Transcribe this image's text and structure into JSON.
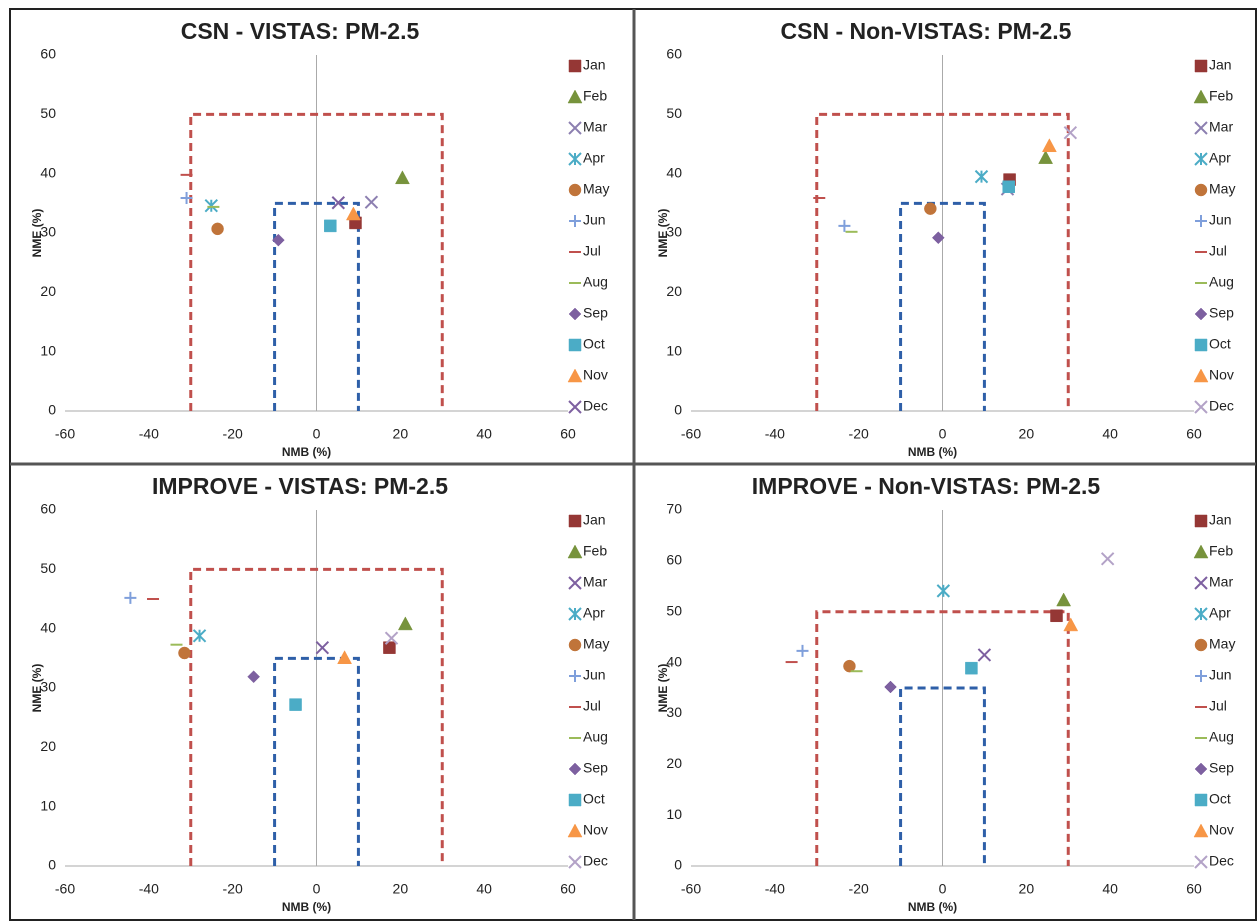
{
  "chart_data": [
    {
      "type": "scatter",
      "title": "CSN - VISTAS: PM-2.5",
      "xlabel": "NMB (%)",
      "ylabel": "NME (%)",
      "xlim": [
        -60,
        60
      ],
      "xticks": [
        -60,
        -40,
        -20,
        0,
        20,
        40,
        60
      ],
      "ylim": [
        0,
        60
      ],
      "yticks": [
        0,
        10,
        20,
        30,
        40,
        50,
        60
      ],
      "boxes": [
        {
          "xlim": [
            -30,
            30
          ],
          "top": 50,
          "color": "#c0504d"
        },
        {
          "xlim": [
            -10,
            10
          ],
          "top": 35,
          "color": "#2e5fa8"
        }
      ],
      "series": [
        {
          "name": "Jan",
          "color": "#953735",
          "marker": "square",
          "x": [
            9.3
          ],
          "values": [
            31.7
          ]
        },
        {
          "name": "Feb",
          "color": "#77933c",
          "marker": "triangle",
          "x": [
            20.5
          ],
          "values": [
            39.3
          ]
        },
        {
          "name": "Mar",
          "color": "#8c7fb0",
          "marker": "x",
          "x": [
            13.1
          ],
          "values": [
            35.2
          ]
        },
        {
          "name": "Apr",
          "color": "#4bacc6",
          "marker": "asterisk",
          "x": [
            -25.1
          ],
          "values": [
            34.6
          ]
        },
        {
          "name": "May",
          "color": "#c0743a",
          "marker": "circle",
          "x": [
            -23.6
          ],
          "values": [
            30.7
          ]
        },
        {
          "name": "Jun",
          "color": "#7f9fdb",
          "marker": "plus",
          "x": [
            -31
          ],
          "values": [
            35.9
          ]
        },
        {
          "name": "Jul",
          "color": "#c0504d",
          "marker": "dash",
          "x": [
            -31
          ],
          "values": [
            39.8
          ]
        },
        {
          "name": "Aug",
          "color": "#9bbb59",
          "marker": "dash",
          "x": [
            -24.6
          ],
          "values": [
            34.4
          ]
        },
        {
          "name": "Sep",
          "color": "#7d60a0",
          "marker": "diamond",
          "x": [
            -9.1
          ],
          "values": [
            28.8
          ]
        },
        {
          "name": "Oct",
          "color": "#4bacc6",
          "marker": "square",
          "x": [
            3.3
          ],
          "values": [
            31.2
          ]
        },
        {
          "name": "Nov",
          "color": "#f79646",
          "marker": "triangle",
          "x": [
            8.8
          ],
          "values": [
            33.2
          ]
        },
        {
          "name": "Dec",
          "color": "#7d60a0",
          "marker": "x",
          "x": [
            5.2
          ],
          "values": [
            35.1
          ]
        }
      ]
    },
    {
      "type": "scatter",
      "title": "CSN - Non-VISTAS: PM-2.5",
      "xlabel": "NMB (%)",
      "ylabel": "NME (%)",
      "xlim": [
        -60,
        60
      ],
      "xticks": [
        -60,
        -40,
        -20,
        0,
        20,
        40,
        60
      ],
      "ylim": [
        0,
        60
      ],
      "yticks": [
        0,
        10,
        20,
        30,
        40,
        50,
        60
      ],
      "boxes": [
        {
          "xlim": [
            -30,
            30
          ],
          "top": 50,
          "color": "#c0504d"
        },
        {
          "xlim": [
            -10,
            10
          ],
          "top": 35,
          "color": "#2e5fa8"
        }
      ],
      "series": [
        {
          "name": "Jan",
          "color": "#953735",
          "marker": "square",
          "x": [
            16.0
          ],
          "values": [
            39.0
          ]
        },
        {
          "name": "Feb",
          "color": "#77933c",
          "marker": "triangle",
          "x": [
            24.6
          ],
          "values": [
            42.7
          ]
        },
        {
          "name": "Mar",
          "color": "#8c7fb0",
          "marker": "x",
          "x": [
            15.5
          ],
          "values": [
            37.4
          ]
        },
        {
          "name": "Apr",
          "color": "#4bacc6",
          "marker": "asterisk",
          "x": [
            9.3
          ],
          "values": [
            39.5
          ]
        },
        {
          "name": "May",
          "color": "#c0743a",
          "marker": "circle",
          "x": [
            -2.9
          ],
          "values": [
            34.1
          ]
        },
        {
          "name": "Jun",
          "color": "#7f9fdb",
          "marker": "plus",
          "x": [
            -23.4
          ],
          "values": [
            31.2
          ]
        },
        {
          "name": "Jul",
          "color": "#c0504d",
          "marker": "dash",
          "x": [
            -29.4
          ],
          "values": [
            35.9
          ]
        },
        {
          "name": "Aug",
          "color": "#9bbb59",
          "marker": "dash",
          "x": [
            -21.7
          ],
          "values": [
            30.2
          ]
        },
        {
          "name": "Sep",
          "color": "#7d60a0",
          "marker": "diamond",
          "x": [
            -1
          ],
          "values": [
            29.2
          ]
        },
        {
          "name": "Oct",
          "color": "#4bacc6",
          "marker": "square",
          "x": [
            15.8
          ],
          "values": [
            37.8
          ]
        },
        {
          "name": "Nov",
          "color": "#f79646",
          "marker": "triangle",
          "x": [
            25.5
          ],
          "values": [
            44.7
          ]
        },
        {
          "name": "Dec",
          "color": "#b3a2c7",
          "marker": "x",
          "x": [
            30.5
          ],
          "values": [
            46.9
          ]
        }
      ]
    },
    {
      "type": "scatter",
      "title": "IMPROVE - VISTAS: PM-2.5",
      "xlabel": "NMB (%)",
      "ylabel": "NME (%)",
      "xlim": [
        -60,
        60
      ],
      "xticks": [
        -60,
        -40,
        -20,
        0,
        20,
        40,
        60
      ],
      "ylim": [
        0,
        60
      ],
      "yticks": [
        0,
        10,
        20,
        30,
        40,
        50,
        60
      ],
      "boxes": [
        {
          "xlim": [
            -30,
            30
          ],
          "top": 50,
          "color": "#c0504d"
        },
        {
          "xlim": [
            -10,
            10
          ],
          "top": 35,
          "color": "#2e5fa8"
        }
      ],
      "series": [
        {
          "name": "Jan",
          "color": "#953735",
          "marker": "square",
          "x": [
            17.4
          ],
          "values": [
            36.8
          ]
        },
        {
          "name": "Feb",
          "color": "#77933c",
          "marker": "triangle",
          "x": [
            21.2
          ],
          "values": [
            40.8
          ]
        },
        {
          "name": "Mar",
          "color": "#7d60a0",
          "marker": "x",
          "x": [
            1.4
          ],
          "values": [
            36.8
          ]
        },
        {
          "name": "Apr",
          "color": "#4bacc6",
          "marker": "asterisk",
          "x": [
            -27.9
          ],
          "values": [
            38.8
          ]
        },
        {
          "name": "May",
          "color": "#c0743a",
          "marker": "circle",
          "x": [
            -31.5
          ],
          "values": [
            35.9
          ]
        },
        {
          "name": "Jun",
          "color": "#7f9fdb",
          "marker": "plus",
          "x": [
            -44.4
          ],
          "values": [
            45.2
          ]
        },
        {
          "name": "Jul",
          "color": "#c0504d",
          "marker": "dash",
          "x": [
            -39.0
          ],
          "values": [
            45.0
          ]
        },
        {
          "name": "Aug",
          "color": "#9bbb59",
          "marker": "dash",
          "x": [
            -33.4
          ],
          "values": [
            37.3
          ]
        },
        {
          "name": "Sep",
          "color": "#7d60a0",
          "marker": "diamond",
          "x": [
            -15
          ],
          "values": [
            31.9
          ]
        },
        {
          "name": "Oct",
          "color": "#4bacc6",
          "marker": "square",
          "x": [
            -5
          ],
          "values": [
            27.2
          ]
        },
        {
          "name": "Nov",
          "color": "#f79646",
          "marker": "triangle",
          "x": [
            6.7
          ],
          "values": [
            35.1
          ]
        },
        {
          "name": "Dec",
          "color": "#b3a2c7",
          "marker": "x",
          "x": [
            17.9
          ],
          "values": [
            38.4
          ]
        }
      ]
    },
    {
      "type": "scatter",
      "title": "IMPROVE - Non-VISTAS: PM-2.5",
      "xlabel": "NMB (%)",
      "ylabel": "NME (%)",
      "xlim": [
        -60,
        60
      ],
      "xticks": [
        -60,
        -40,
        -20,
        0,
        20,
        40,
        60
      ],
      "ylim": [
        0,
        70
      ],
      "yticks": [
        0,
        10,
        20,
        30,
        40,
        50,
        60,
        70
      ],
      "boxes": [
        {
          "xlim": [
            -30,
            30
          ],
          "top": 50,
          "color": "#c0504d"
        },
        {
          "xlim": [
            -10,
            10
          ],
          "top": 35,
          "color": "#2e5fa8"
        }
      ],
      "series": [
        {
          "name": "Jan",
          "color": "#953735",
          "marker": "square",
          "x": [
            27.2
          ],
          "values": [
            49.2
          ]
        },
        {
          "name": "Feb",
          "color": "#77933c",
          "marker": "triangle",
          "x": [
            28.9
          ],
          "values": [
            52.3
          ]
        },
        {
          "name": "Mar",
          "color": "#7d60a0",
          "marker": "x",
          "x": [
            10
          ],
          "values": [
            41.5
          ]
        },
        {
          "name": "Apr",
          "color": "#4bacc6",
          "marker": "asterisk",
          "x": [
            0.2
          ],
          "values": [
            54.1
          ]
        },
        {
          "name": "May",
          "color": "#c0743a",
          "marker": "circle",
          "x": [
            -22.2
          ],
          "values": [
            39.3
          ]
        },
        {
          "name": "Jun",
          "color": "#7f9fdb",
          "marker": "plus",
          "x": [
            -33.4
          ],
          "values": [
            42.3
          ]
        },
        {
          "name": "Jul",
          "color": "#c0504d",
          "marker": "dash",
          "x": [
            -36
          ],
          "values": [
            40.1
          ]
        },
        {
          "name": "Aug",
          "color": "#9bbb59",
          "marker": "dash",
          "x": [
            -20.5
          ],
          "values": [
            38.3
          ]
        },
        {
          "name": "Sep",
          "color": "#7d60a0",
          "marker": "diamond",
          "x": [
            -12.4
          ],
          "values": [
            35.2
          ]
        },
        {
          "name": "Oct",
          "color": "#4bacc6",
          "marker": "square",
          "x": [
            6.9
          ],
          "values": [
            38.9
          ]
        },
        {
          "name": "Nov",
          "color": "#f79646",
          "marker": "triangle",
          "x": [
            30.6
          ],
          "values": [
            47.4
          ]
        },
        {
          "name": "Dec",
          "color": "#b3a2c7",
          "marker": "x",
          "x": [
            39.4
          ],
          "values": [
            60.4
          ]
        }
      ]
    }
  ]
}
